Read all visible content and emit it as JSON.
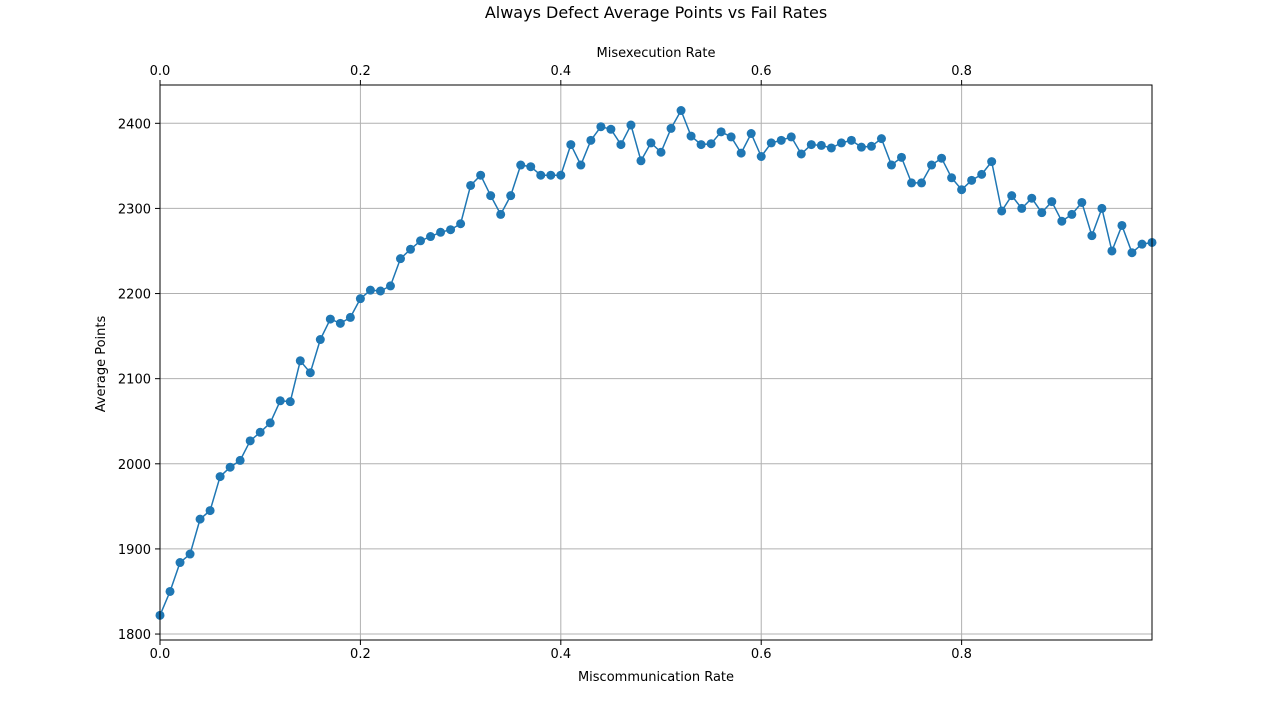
{
  "chart_data": {
    "type": "line",
    "title": "Always Defect Average Points vs Fail Rates",
    "xlabel": "Miscommunication Rate",
    "x2label": "Misexecution Rate",
    "ylabel": "Average Points",
    "xlim": [
      0,
      0.99
    ],
    "ylim": [
      1793,
      2445
    ],
    "grid": true,
    "x_ticks": [
      {
        "value": 0.0,
        "label": "0.0"
      },
      {
        "value": 0.2,
        "label": "0.2"
      },
      {
        "value": 0.4,
        "label": "0.4"
      },
      {
        "value": 0.6,
        "label": "0.6"
      },
      {
        "value": 0.8,
        "label": "0.8"
      }
    ],
    "y_ticks": [
      {
        "value": 1800,
        "label": "1800"
      },
      {
        "value": 1900,
        "label": "1900"
      },
      {
        "value": 2000,
        "label": "2000"
      },
      {
        "value": 2100,
        "label": "2100"
      },
      {
        "value": 2200,
        "label": "2200"
      },
      {
        "value": 2300,
        "label": "2300"
      },
      {
        "value": 2400,
        "label": "2400"
      }
    ],
    "colors": {
      "series": "#1f77b4",
      "grid": "#b0b0b0",
      "axis": "#000000"
    },
    "series": [
      {
        "x": [
          0.0,
          0.01,
          0.02,
          0.03,
          0.04,
          0.05,
          0.06,
          0.07,
          0.08,
          0.09,
          0.1,
          0.11,
          0.12,
          0.13,
          0.14,
          0.15,
          0.16,
          0.17,
          0.18,
          0.19,
          0.2,
          0.21,
          0.22,
          0.23,
          0.24,
          0.25,
          0.26,
          0.27,
          0.28,
          0.29,
          0.3,
          0.31,
          0.32,
          0.33,
          0.34,
          0.35,
          0.36,
          0.37,
          0.38,
          0.39,
          0.4,
          0.41,
          0.42,
          0.43,
          0.44,
          0.45,
          0.46,
          0.47,
          0.48,
          0.49,
          0.5,
          0.51,
          0.52,
          0.53,
          0.54,
          0.55,
          0.56,
          0.57,
          0.58,
          0.59,
          0.6,
          0.61,
          0.62,
          0.63,
          0.64,
          0.65,
          0.66,
          0.67,
          0.68,
          0.69,
          0.7,
          0.71,
          0.72,
          0.73,
          0.74,
          0.75,
          0.76,
          0.77,
          0.78,
          0.79,
          0.8,
          0.81,
          0.82,
          0.83,
          0.84,
          0.85,
          0.86,
          0.87,
          0.88,
          0.89,
          0.9,
          0.91,
          0.92,
          0.93,
          0.94,
          0.95,
          0.96,
          0.97,
          0.98,
          0.99
        ],
        "values": [
          1822,
          1850,
          1884,
          1894,
          1935,
          1945,
          1985,
          1996,
          2004,
          2027,
          2037,
          2048,
          2074,
          2073,
          2121,
          2107,
          2146,
          2170,
          2165,
          2172,
          2194,
          2204,
          2203,
          2209,
          2241,
          2252,
          2262,
          2267,
          2272,
          2275,
          2282,
          2327,
          2339,
          2315,
          2293,
          2315,
          2351,
          2349,
          2339,
          2339,
          2339,
          2375,
          2351,
          2380,
          2396,
          2393,
          2375,
          2398,
          2356,
          2377,
          2366,
          2394,
          2415,
          2385,
          2375,
          2376,
          2390,
          2384,
          2365,
          2388,
          2361,
          2377,
          2380,
          2384,
          2364,
          2375,
          2374,
          2371,
          2377,
          2380,
          2372,
          2373,
          2382,
          2351,
          2360,
          2330,
          2330,
          2351,
          2359,
          2336,
          2322,
          2333,
          2340,
          2355,
          2297,
          2315,
          2300,
          2312,
          2295,
          2308,
          2285,
          2293,
          2307,
          2268,
          2300,
          2250,
          2280,
          2248,
          2258,
          2260
        ]
      }
    ]
  }
}
